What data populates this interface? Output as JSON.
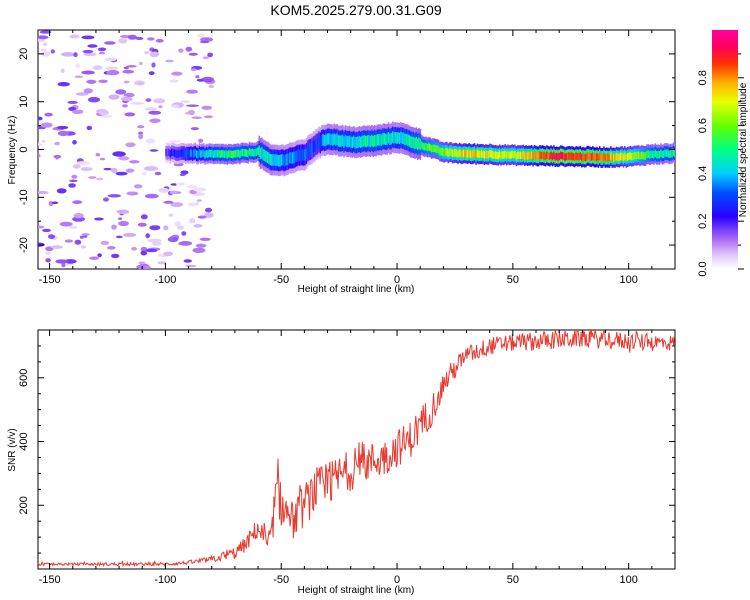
{
  "title": "KOM5.2025.279.00.31.G09",
  "chart_data": [
    {
      "type": "heatmap",
      "title": "KOM5.2025.279.00.31.G09",
      "xlabel": "Height of straight line (km)",
      "ylabel": "Frequency (Hz)",
      "xlim": [
        -155,
        120
      ],
      "ylim": [
        -25,
        25
      ],
      "xticks": [
        -150,
        -100,
        -50,
        0,
        50,
        100
      ],
      "yticks": [
        -20,
        -10,
        0,
        10,
        20
      ],
      "colorbar": {
        "label": "Normalized spectral amplitude",
        "range": [
          0,
          1
        ],
        "ticks": [
          "0.0",
          "0.2",
          "0.4",
          "0.6",
          "0.8"
        ],
        "tick_values": [
          0.0,
          0.2,
          0.4,
          0.6,
          0.8
        ],
        "colors": [
          "#ffffff",
          "#c8a0f0",
          "#8a00f0",
          "#0000ff",
          "#00c8ff",
          "#00ff66",
          "#a0ff00",
          "#ffff00",
          "#ff8000",
          "#ff0000",
          "#ff0090"
        ]
      },
      "ridge": {
        "x": [
          -100,
          -90,
          -80,
          -70,
          -60,
          -55,
          -50,
          -40,
          -35,
          -30,
          -20,
          -10,
          0,
          10,
          20,
          30,
          40,
          50,
          60,
          70,
          80,
          90,
          100,
          110,
          120
        ],
        "freq": [
          -0.8,
          -0.8,
          -1.0,
          -1.0,
          -0.4,
          -2.2,
          -2.3,
          -1.0,
          1.2,
          2.3,
          1.5,
          1.8,
          2.6,
          1.0,
          -0.6,
          -0.9,
          -1.0,
          -1.2,
          -1.3,
          -1.4,
          -1.5,
          -1.6,
          -1.5,
          -1.0,
          -0.8
        ],
        "amp": [
          0.2,
          0.35,
          0.5,
          0.55,
          0.5,
          0.45,
          0.4,
          0.35,
          0.3,
          0.45,
          0.45,
          0.5,
          0.45,
          0.55,
          0.65,
          0.8,
          0.75,
          0.7,
          0.85,
          0.95,
          0.9,
          0.85,
          0.7,
          0.55,
          0.5
        ]
      },
      "noise": {
        "x_range": [
          -155,
          -80
        ],
        "freq_range": [
          -25,
          25
        ],
        "amp_range": [
          0.03,
          0.18
        ]
      }
    },
    {
      "type": "line",
      "xlabel": "Height of straight line (km)",
      "ylabel": "SNR (v/v)",
      "xlim": [
        -155,
        120
      ],
      "ylim": [
        0,
        750
      ],
      "xticks": [
        -150,
        -100,
        -50,
        0,
        50,
        100
      ],
      "yticks": [
        200,
        400,
        600
      ],
      "series": [
        {
          "name": "SNR",
          "color": "#e83a30",
          "x": [
            -155,
            -140,
            -120,
            -100,
            -90,
            -80,
            -70,
            -65,
            -60,
            -57,
            -55,
            -52,
            -50,
            -45,
            -40,
            -35,
            -30,
            -25,
            -20,
            -15,
            -10,
            -5,
            0,
            5,
            10,
            15,
            20,
            25,
            30,
            40,
            50,
            60,
            70,
            80,
            90,
            100,
            110,
            120
          ],
          "y": [
            15,
            15,
            15,
            15,
            20,
            30,
            50,
            80,
            130,
            90,
            60,
            250,
            200,
            150,
            200,
            250,
            260,
            290,
            310,
            330,
            340,
            350,
            380,
            400,
            450,
            500,
            580,
            630,
            670,
            700,
            710,
            715,
            720,
            725,
            720,
            715,
            710,
            710
          ],
          "noise": [
            4,
            4,
            5,
            5,
            6,
            10,
            20,
            25,
            35,
            40,
            45,
            70,
            70,
            60,
            70,
            70,
            70,
            70,
            65,
            65,
            60,
            60,
            60,
            60,
            60,
            50,
            40,
            35,
            30,
            28,
            28,
            30,
            30,
            30,
            30,
            28,
            28,
            25
          ]
        }
      ]
    }
  ]
}
